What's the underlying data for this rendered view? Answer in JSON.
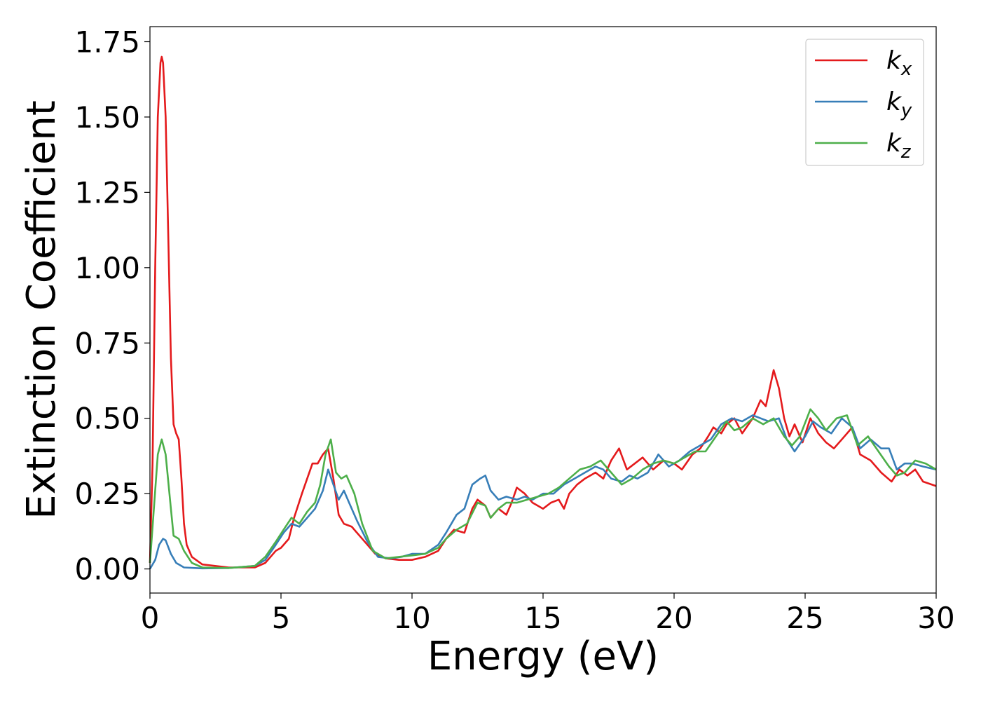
{
  "chart_data": {
    "type": "line",
    "title": "",
    "xlabel": "Energy (eV)",
    "ylabel": "Extinction Coefficient",
    "xlim": [
      0,
      30
    ],
    "ylim": [
      -0.08,
      1.8
    ],
    "xticks": [
      0,
      5,
      10,
      15,
      20,
      25,
      30
    ],
    "xtick_labels": [
      "0",
      "5",
      "10",
      "15",
      "20",
      "25",
      "30"
    ],
    "yticks": [
      0,
      0.25,
      0.5,
      0.75,
      1.0,
      1.25,
      1.5,
      1.75
    ],
    "ytick_labels": [
      "0.00",
      "0.25",
      "0.50",
      "0.75",
      "1.00",
      "1.25",
      "1.50",
      "1.75"
    ],
    "grid": false,
    "legend_position": "top-right",
    "series": [
      {
        "name": "k_x",
        "label_base": "k",
        "label_sub": "x",
        "color": "#e41a1c",
        "points": [
          [
            0,
            0.02
          ],
          [
            0.1,
            0.35
          ],
          [
            0.2,
            1.0
          ],
          [
            0.3,
            1.5
          ],
          [
            0.4,
            1.68
          ],
          [
            0.45,
            1.7
          ],
          [
            0.5,
            1.68
          ],
          [
            0.6,
            1.5
          ],
          [
            0.7,
            1.1
          ],
          [
            0.8,
            0.7
          ],
          [
            0.9,
            0.48
          ],
          [
            1.0,
            0.45
          ],
          [
            1.1,
            0.43
          ],
          [
            1.2,
            0.3
          ],
          [
            1.3,
            0.15
          ],
          [
            1.4,
            0.08
          ],
          [
            1.6,
            0.04
          ],
          [
            2.0,
            0.015
          ],
          [
            3.0,
            0.005
          ],
          [
            4.0,
            0.005
          ],
          [
            4.4,
            0.02
          ],
          [
            4.8,
            0.06
          ],
          [
            5.0,
            0.07
          ],
          [
            5.3,
            0.1
          ],
          [
            5.5,
            0.17
          ],
          [
            5.8,
            0.25
          ],
          [
            6.0,
            0.3
          ],
          [
            6.2,
            0.35
          ],
          [
            6.4,
            0.35
          ],
          [
            6.6,
            0.38
          ],
          [
            6.8,
            0.4
          ],
          [
            7.0,
            0.3
          ],
          [
            7.2,
            0.18
          ],
          [
            7.4,
            0.15
          ],
          [
            7.7,
            0.14
          ],
          [
            8.0,
            0.11
          ],
          [
            8.3,
            0.08
          ],
          [
            8.6,
            0.05
          ],
          [
            9.0,
            0.035
          ],
          [
            9.5,
            0.03
          ],
          [
            10.0,
            0.03
          ],
          [
            10.5,
            0.04
          ],
          [
            11.0,
            0.06
          ],
          [
            11.3,
            0.1
          ],
          [
            11.6,
            0.13
          ],
          [
            12.0,
            0.12
          ],
          [
            12.3,
            0.2
          ],
          [
            12.5,
            0.23
          ],
          [
            12.8,
            0.21
          ],
          [
            13.0,
            0.17
          ],
          [
            13.3,
            0.2
          ],
          [
            13.6,
            0.18
          ],
          [
            13.8,
            0.22
          ],
          [
            14.0,
            0.27
          ],
          [
            14.3,
            0.25
          ],
          [
            14.6,
            0.22
          ],
          [
            15.0,
            0.2
          ],
          [
            15.3,
            0.22
          ],
          [
            15.6,
            0.23
          ],
          [
            15.8,
            0.2
          ],
          [
            16.0,
            0.25
          ],
          [
            16.3,
            0.28
          ],
          [
            16.6,
            0.3
          ],
          [
            17.0,
            0.32
          ],
          [
            17.3,
            0.3
          ],
          [
            17.6,
            0.36
          ],
          [
            17.9,
            0.4
          ],
          [
            18.2,
            0.33
          ],
          [
            18.5,
            0.35
          ],
          [
            18.8,
            0.37
          ],
          [
            19.2,
            0.33
          ],
          [
            19.6,
            0.36
          ],
          [
            20.0,
            0.35
          ],
          [
            20.3,
            0.33
          ],
          [
            20.7,
            0.38
          ],
          [
            21.0,
            0.4
          ],
          [
            21.3,
            0.44
          ],
          [
            21.5,
            0.47
          ],
          [
            21.8,
            0.45
          ],
          [
            22.0,
            0.48
          ],
          [
            22.3,
            0.5
          ],
          [
            22.6,
            0.45
          ],
          [
            23.0,
            0.5
          ],
          [
            23.3,
            0.56
          ],
          [
            23.5,
            0.54
          ],
          [
            23.8,
            0.66
          ],
          [
            24.0,
            0.6
          ],
          [
            24.2,
            0.5
          ],
          [
            24.4,
            0.44
          ],
          [
            24.6,
            0.48
          ],
          [
            24.9,
            0.42
          ],
          [
            25.2,
            0.5
          ],
          [
            25.5,
            0.45
          ],
          [
            25.8,
            0.42
          ],
          [
            26.1,
            0.4
          ],
          [
            26.4,
            0.43
          ],
          [
            26.8,
            0.47
          ],
          [
            27.1,
            0.38
          ],
          [
            27.5,
            0.36
          ],
          [
            27.9,
            0.32
          ],
          [
            28.3,
            0.29
          ],
          [
            28.6,
            0.33
          ],
          [
            28.9,
            0.31
          ],
          [
            29.2,
            0.33
          ],
          [
            29.5,
            0.29
          ],
          [
            30.0,
            0.275
          ]
        ]
      },
      {
        "name": "k_y",
        "label_base": "k",
        "label_sub": "y",
        "color": "#377eb8",
        "points": [
          [
            0,
            0.0
          ],
          [
            0.2,
            0.03
          ],
          [
            0.35,
            0.08
          ],
          [
            0.5,
            0.1
          ],
          [
            0.6,
            0.095
          ],
          [
            0.8,
            0.05
          ],
          [
            1.0,
            0.02
          ],
          [
            1.3,
            0.005
          ],
          [
            2.0,
            0.002
          ],
          [
            3.0,
            0.003
          ],
          [
            4.0,
            0.01
          ],
          [
            4.4,
            0.03
          ],
          [
            4.8,
            0.08
          ],
          [
            5.1,
            0.12
          ],
          [
            5.4,
            0.15
          ],
          [
            5.7,
            0.14
          ],
          [
            6.0,
            0.17
          ],
          [
            6.3,
            0.2
          ],
          [
            6.6,
            0.26
          ],
          [
            6.8,
            0.33
          ],
          [
            7.0,
            0.28
          ],
          [
            7.2,
            0.23
          ],
          [
            7.4,
            0.26
          ],
          [
            7.6,
            0.22
          ],
          [
            7.9,
            0.16
          ],
          [
            8.3,
            0.09
          ],
          [
            8.7,
            0.04
          ],
          [
            9.2,
            0.035
          ],
          [
            9.6,
            0.04
          ],
          [
            10.0,
            0.05
          ],
          [
            10.5,
            0.05
          ],
          [
            11.0,
            0.08
          ],
          [
            11.3,
            0.12
          ],
          [
            11.7,
            0.18
          ],
          [
            12.0,
            0.2
          ],
          [
            12.3,
            0.28
          ],
          [
            12.6,
            0.3
          ],
          [
            12.8,
            0.31
          ],
          [
            13.0,
            0.26
          ],
          [
            13.3,
            0.23
          ],
          [
            13.6,
            0.24
          ],
          [
            14.0,
            0.23
          ],
          [
            14.3,
            0.24
          ],
          [
            14.6,
            0.23
          ],
          [
            15.0,
            0.25
          ],
          [
            15.4,
            0.25
          ],
          [
            15.8,
            0.28
          ],
          [
            16.2,
            0.3
          ],
          [
            16.6,
            0.32
          ],
          [
            17.0,
            0.34
          ],
          [
            17.3,
            0.33
          ],
          [
            17.6,
            0.3
          ],
          [
            18.0,
            0.29
          ],
          [
            18.3,
            0.31
          ],
          [
            18.6,
            0.3
          ],
          [
            19.0,
            0.32
          ],
          [
            19.4,
            0.38
          ],
          [
            19.8,
            0.34
          ],
          [
            20.2,
            0.36
          ],
          [
            20.6,
            0.39
          ],
          [
            21.0,
            0.41
          ],
          [
            21.4,
            0.43
          ],
          [
            21.8,
            0.48
          ],
          [
            22.2,
            0.5
          ],
          [
            22.6,
            0.49
          ],
          [
            23.0,
            0.51
          ],
          [
            23.3,
            0.5
          ],
          [
            23.6,
            0.49
          ],
          [
            24.0,
            0.5
          ],
          [
            24.3,
            0.43
          ],
          [
            24.6,
            0.39
          ],
          [
            25.0,
            0.44
          ],
          [
            25.3,
            0.49
          ],
          [
            25.6,
            0.47
          ],
          [
            26.0,
            0.45
          ],
          [
            26.4,
            0.5
          ],
          [
            26.8,
            0.47
          ],
          [
            27.1,
            0.4
          ],
          [
            27.5,
            0.43
          ],
          [
            27.9,
            0.4
          ],
          [
            28.2,
            0.4
          ],
          [
            28.5,
            0.33
          ],
          [
            28.8,
            0.35
          ],
          [
            29.1,
            0.35
          ],
          [
            29.5,
            0.34
          ],
          [
            30.0,
            0.33
          ]
        ]
      },
      {
        "name": "k_z",
        "label_base": "k",
        "label_sub": "z",
        "color": "#4daf4a",
        "points": [
          [
            0,
            0.02
          ],
          [
            0.15,
            0.2
          ],
          [
            0.3,
            0.38
          ],
          [
            0.45,
            0.43
          ],
          [
            0.6,
            0.38
          ],
          [
            0.8,
            0.2
          ],
          [
            0.9,
            0.11
          ],
          [
            1.1,
            0.1
          ],
          [
            1.3,
            0.06
          ],
          [
            1.6,
            0.02
          ],
          [
            2.0,
            0.005
          ],
          [
            3.0,
            0.003
          ],
          [
            4.0,
            0.01
          ],
          [
            4.4,
            0.04
          ],
          [
            4.8,
            0.09
          ],
          [
            5.1,
            0.13
          ],
          [
            5.4,
            0.17
          ],
          [
            5.7,
            0.15
          ],
          [
            6.0,
            0.19
          ],
          [
            6.3,
            0.22
          ],
          [
            6.5,
            0.28
          ],
          [
            6.7,
            0.38
          ],
          [
            6.9,
            0.43
          ],
          [
            7.1,
            0.32
          ],
          [
            7.3,
            0.3
          ],
          [
            7.5,
            0.31
          ],
          [
            7.8,
            0.25
          ],
          [
            8.1,
            0.15
          ],
          [
            8.5,
            0.06
          ],
          [
            9.0,
            0.035
          ],
          [
            9.5,
            0.04
          ],
          [
            10.0,
            0.045
          ],
          [
            10.5,
            0.05
          ],
          [
            11.0,
            0.07
          ],
          [
            11.3,
            0.1
          ],
          [
            11.7,
            0.13
          ],
          [
            12.1,
            0.15
          ],
          [
            12.5,
            0.22
          ],
          [
            12.8,
            0.21
          ],
          [
            13.0,
            0.17
          ],
          [
            13.3,
            0.2
          ],
          [
            13.6,
            0.22
          ],
          [
            14.0,
            0.22
          ],
          [
            14.4,
            0.23
          ],
          [
            14.8,
            0.24
          ],
          [
            15.2,
            0.25
          ],
          [
            15.6,
            0.27
          ],
          [
            16.0,
            0.3
          ],
          [
            16.4,
            0.33
          ],
          [
            16.8,
            0.34
          ],
          [
            17.2,
            0.36
          ],
          [
            17.6,
            0.32
          ],
          [
            18.0,
            0.28
          ],
          [
            18.4,
            0.3
          ],
          [
            18.8,
            0.33
          ],
          [
            19.2,
            0.35
          ],
          [
            19.6,
            0.36
          ],
          [
            20.0,
            0.35
          ],
          [
            20.4,
            0.37
          ],
          [
            20.8,
            0.39
          ],
          [
            21.2,
            0.39
          ],
          [
            21.6,
            0.44
          ],
          [
            22.0,
            0.49
          ],
          [
            22.3,
            0.46
          ],
          [
            22.6,
            0.47
          ],
          [
            23.0,
            0.5
          ],
          [
            23.4,
            0.48
          ],
          [
            23.8,
            0.5
          ],
          [
            24.2,
            0.44
          ],
          [
            24.5,
            0.41
          ],
          [
            24.8,
            0.44
          ],
          [
            25.2,
            0.53
          ],
          [
            25.5,
            0.5
          ],
          [
            25.8,
            0.46
          ],
          [
            26.2,
            0.5
          ],
          [
            26.6,
            0.51
          ],
          [
            27.0,
            0.41
          ],
          [
            27.4,
            0.44
          ],
          [
            27.8,
            0.39
          ],
          [
            28.2,
            0.34
          ],
          [
            28.5,
            0.31
          ],
          [
            28.8,
            0.32
          ],
          [
            29.2,
            0.36
          ],
          [
            29.6,
            0.35
          ],
          [
            30.0,
            0.33
          ]
        ]
      }
    ]
  }
}
